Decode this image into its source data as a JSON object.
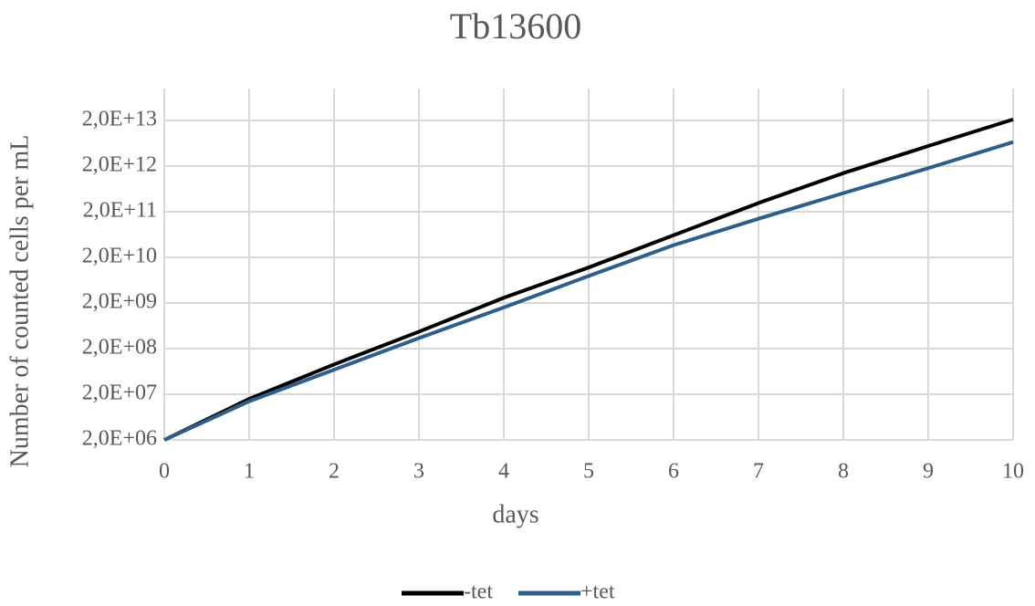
{
  "chart_data": {
    "type": "line",
    "title": "Tb13600",
    "x_label": "days",
    "y_label": "Number of counted cells per mL",
    "x": [
      0,
      1,
      2,
      3,
      4,
      5,
      6,
      7,
      8,
      9,
      10
    ],
    "series": [
      {
        "name": "-tet",
        "color": "#000000",
        "values": [
          2000000,
          15800000,
          90000000,
          470000000,
          2600000000,
          12000000000,
          61000000000,
          310000000000,
          1400000000000,
          5500000000000,
          21000000000000
        ]
      },
      {
        "name": "+tet",
        "color": "#2e5f8a",
        "values": [
          2000000,
          14000000,
          69000000,
          340000000,
          1600000000,
          7800000000,
          37000000000,
          140000000000,
          510000000000,
          1800000000000,
          6700000000000
        ]
      }
    ],
    "xlim": [
      0,
      10
    ],
    "xticks": [
      0,
      1,
      2,
      3,
      4,
      5,
      6,
      7,
      8,
      9,
      10
    ],
    "ylim": [
      2000000,
      100000000000000
    ],
    "y_scale": "log",
    "yticks": [
      {
        "value": 2000000,
        "label": "2,0E+06"
      },
      {
        "value": 20000000,
        "label": "2,0E+07"
      },
      {
        "value": 200000000,
        "label": "2,0E+08"
      },
      {
        "value": 2000000000,
        "label": "2,0E+09"
      },
      {
        "value": 20000000000,
        "label": "2,0E+10"
      },
      {
        "value": 200000000000,
        "label": "2,0E+11"
      },
      {
        "value": 2000000000000,
        "label": "2,0E+12"
      },
      {
        "value": 20000000000000,
        "label": "2,0E+13"
      }
    ],
    "grid": true,
    "legend_position": "bottom"
  }
}
